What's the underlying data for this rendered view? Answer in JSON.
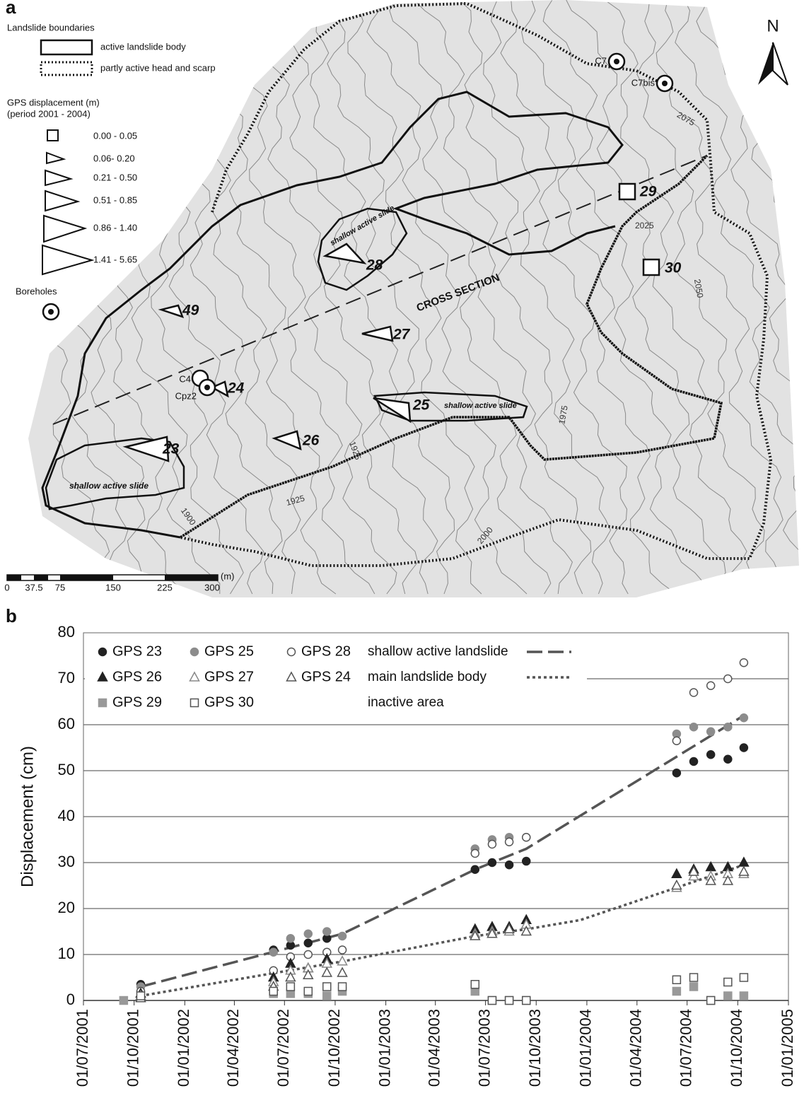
{
  "map": {
    "label": "a",
    "north": "N",
    "legend": {
      "boundaries_title": "Landslide boundaries",
      "boundaries": [
        "active landslide body",
        "partly active head and scarp"
      ],
      "gps_title": "GPS displacement (m)",
      "gps_period": "(period 2001 - 2004)",
      "gps_classes": [
        "0.00 - 0.05",
        "0.06- 0.20",
        "0.21 - 0.50",
        "0.51 - 0.85",
        "0.86 - 1.40",
        "1.41 - 5.65"
      ],
      "boreholes": "Boreholes"
    },
    "stations": [
      "29",
      "30",
      "28",
      "27",
      "49",
      "24",
      "25",
      "26",
      "23"
    ],
    "boreholes": [
      "C7",
      "C7bis",
      "C4",
      "Cpz2"
    ],
    "annotations": [
      "CROSS SECTION",
      "shallow active slide",
      "shallow active slide",
      "shallow active slide"
    ],
    "contours": [
      "2075",
      "2025",
      "2050",
      "1975",
      "1925",
      "1925",
      "1900",
      "2000"
    ],
    "scale": {
      "ticks": [
        "0",
        "37.5",
        "75",
        "150",
        "225",
        "300"
      ],
      "unit": "(m)"
    }
  },
  "panel_b_label": "b",
  "chart_data": {
    "type": "scatter",
    "y_label": "Displacement (cm)",
    "x": [
      "2001-09-12",
      "2001-10-13",
      "2002-06-11",
      "2002-07-12",
      "2002-08-13",
      "2002-09-16",
      "2002-10-14",
      "2003-06-12",
      "2003-07-13",
      "2003-08-13",
      "2003-09-13",
      "2004-06-12",
      "2004-07-13",
      "2004-08-13",
      "2004-09-13",
      "2004-10-12"
    ],
    "xlim": [
      "2001-07-01",
      "2005-01-01"
    ],
    "xticks": [
      {
        "value": "2001-07-01",
        "label": "01/07/2001"
      },
      {
        "value": "2001-10-01",
        "label": "01/10/2001"
      },
      {
        "value": "2002-01-01",
        "label": "01/01/2002"
      },
      {
        "value": "2002-04-01",
        "label": "01/04/2002"
      },
      {
        "value": "2002-07-01",
        "label": "01/07/2002"
      },
      {
        "value": "2002-10-01",
        "label": "01/10/2002"
      },
      {
        "value": "2003-01-01",
        "label": "01/01/2003"
      },
      {
        "value": "2003-04-01",
        "label": "01/04/2003"
      },
      {
        "value": "2003-07-01",
        "label": "01/07/2003"
      },
      {
        "value": "2003-10-01",
        "label": "01/10/2003"
      },
      {
        "value": "2004-01-01",
        "label": "01/01/2004"
      },
      {
        "value": "2004-04-01",
        "label": "01/04/2004"
      },
      {
        "value": "2004-07-01",
        "label": "01/07/2004"
      },
      {
        "value": "2004-10-01",
        "label": "01/10/2004"
      },
      {
        "value": "2005-01-01",
        "label": "01/01/2005"
      }
    ],
    "ylim": [
      0,
      80
    ],
    "yticks": [
      0,
      10,
      20,
      30,
      40,
      50,
      60,
      70,
      80
    ],
    "grid": true,
    "series": [
      {
        "name": "GPS 23",
        "marker": "circle",
        "color": "#222222",
        "filled": true,
        "values": [
          null,
          3.5,
          11,
          12,
          12.5,
          13.5,
          null,
          28.5,
          30,
          29.5,
          30.3,
          49.5,
          52,
          53.5,
          52.5,
          55
        ]
      },
      {
        "name": "GPS 25",
        "marker": "circle",
        "color": "#8c8c8c",
        "filled": true,
        "values": [
          null,
          3,
          10.5,
          13.5,
          14.5,
          15,
          14,
          33,
          35,
          35.5,
          35.5,
          58,
          59.5,
          58.5,
          59.5,
          61.5
        ]
      },
      {
        "name": "GPS 28",
        "marker": "circle",
        "color": "#555555",
        "filled": false,
        "values": [
          null,
          2,
          6.5,
          9.5,
          10,
          10.5,
          11,
          32,
          34,
          34.5,
          35.5,
          56.5,
          67,
          68.5,
          70,
          73.5
        ]
      },
      {
        "name": "GPS 26",
        "marker": "triangle",
        "color": "#222222",
        "filled": true,
        "values": [
          null,
          1.5,
          5,
          8,
          7,
          9,
          null,
          15.5,
          16,
          16,
          17.5,
          27.5,
          28.5,
          29,
          29,
          30
        ]
      },
      {
        "name": "GPS 27",
        "marker": "triangle",
        "color": "#888888",
        "filled": false,
        "values": [
          null,
          1,
          4,
          6.5,
          7,
          8,
          8.5,
          14.5,
          15,
          15,
          16.5,
          24.5,
          27,
          27,
          27.5,
          27.5
        ]
      },
      {
        "name": "GPS 24",
        "marker": "triangle",
        "color": "#555555",
        "filled": false,
        "values": [
          null,
          0.5,
          3,
          5,
          5.5,
          6,
          6,
          14,
          14.5,
          15.5,
          15,
          25,
          28,
          26,
          26,
          28
        ]
      },
      {
        "name": "GPS 29",
        "marker": "square",
        "color": "#999999",
        "filled": true,
        "values": [
          0,
          null,
          1.5,
          1.5,
          1.5,
          1,
          2,
          2,
          0,
          0,
          0,
          2,
          3,
          0,
          1,
          1
        ]
      },
      {
        "name": "GPS 30",
        "marker": "square",
        "color": "#555555",
        "filled": false,
        "values": [
          null,
          1,
          2,
          3,
          2,
          3,
          3,
          3.5,
          0,
          0,
          0,
          4.5,
          5,
          0,
          4,
          5
        ]
      }
    ],
    "trend_lines": [
      {
        "name": "shallow active landslide",
        "dash": "dashed",
        "color": "#555555",
        "x": [
          "2001-10-13",
          "2002-10-14",
          "2003-06-12",
          "2003-09-13",
          "2004-10-12"
        ],
        "values": [
          3,
          14.5,
          28.5,
          33,
          62
        ]
      },
      {
        "name": "main landslide body",
        "dash": "dotted",
        "color": "#555555",
        "x": [
          "2001-10-13",
          "2002-10-14",
          "2003-06-12",
          "2003-09-13",
          "2003-12-20",
          "2004-10-12"
        ],
        "values": [
          1,
          8.5,
          14,
          15.5,
          17.5,
          29.5
        ]
      },
      {
        "name": "inactive area"
      }
    ]
  }
}
